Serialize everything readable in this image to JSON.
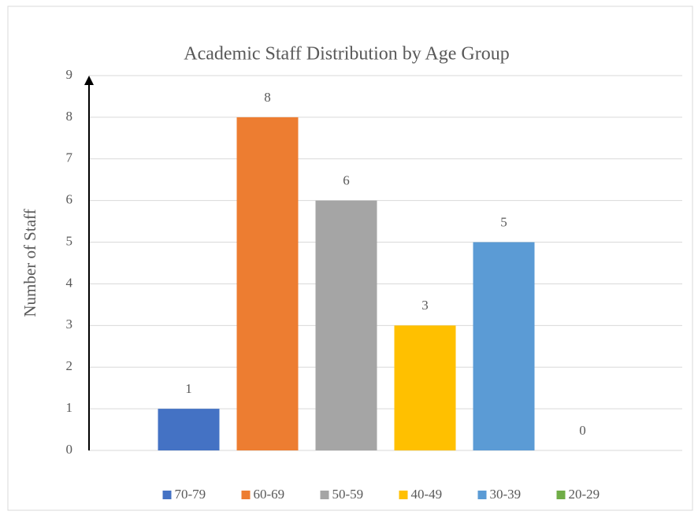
{
  "chart_data": {
    "type": "bar",
    "title": "Academic Staff Distribution by Age Group",
    "y_label": "Number of Staff",
    "categories": [
      null
    ],
    "series": [
      {
        "name": "70-79",
        "color": "#4472c4",
        "values": [
          1
        ]
      },
      {
        "name": "60-69",
        "color": "#ed7d31",
        "values": [
          8
        ]
      },
      {
        "name": "50-59",
        "color": "#a5a5a5",
        "values": [
          6
        ]
      },
      {
        "name": "40-49",
        "color": "#ffc000",
        "values": [
          3
        ]
      },
      {
        "name": "30-39",
        "color": "#5b9bd5",
        "values": [
          5
        ]
      },
      {
        "name": "20-29",
        "color": "#70ad47",
        "values": [
          0
        ]
      }
    ],
    "ylim": [
      0,
      9
    ],
    "yticks": [
      0,
      1,
      2,
      3,
      4,
      5,
      6,
      7,
      8,
      9
    ],
    "grid": true,
    "legend": "bottom"
  }
}
